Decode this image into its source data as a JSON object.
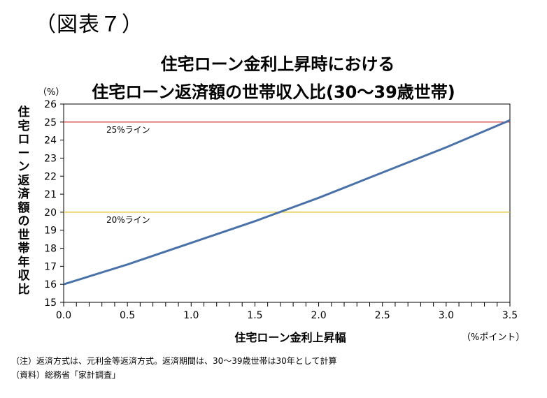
{
  "figure_label": "（図表７）",
  "footnotes": {
    "note": "（注）返済方式は、元利金等返済方式。返済期間は、30～39歳世帯は30年として計算",
    "source": "（資料）総務省「家計調査」"
  },
  "chart_data": {
    "type": "line",
    "title_line1": "住宅ローン金利上昇時における",
    "title_line2": "住宅ローン返済額の世帯収入比(30～39歳世帯)",
    "ylabel": "住宅ローン返済額の世帯年収比",
    "y_unit": "（%）",
    "xlabel": "住宅ローン金利上昇幅",
    "x_unit": "（%ポイント）",
    "xlim": [
      0,
      3.5
    ],
    "ylim": [
      15,
      26
    ],
    "x_ticks": [
      "0.0",
      "0.5",
      "1.0",
      "1.5",
      "2.0",
      "2.5",
      "3.0",
      "3.5"
    ],
    "y_ticks": [
      "15",
      "16",
      "17",
      "18",
      "19",
      "20",
      "21",
      "22",
      "23",
      "24",
      "25",
      "26"
    ],
    "grid": false,
    "series": [
      {
        "color": "#4a72a8",
        "x": [
          0.0,
          0.5,
          1.0,
          1.5,
          2.0,
          2.5,
          3.0,
          3.5
        ],
        "values": [
          16.0,
          17.1,
          18.3,
          19.5,
          20.8,
          22.2,
          23.6,
          25.1
        ]
      }
    ],
    "reference_lines": [
      {
        "y": 25,
        "label": "25%ライン",
        "color": "#cc2222"
      },
      {
        "y": 20,
        "label": "20%ライン",
        "color": "#e0c020"
      }
    ]
  }
}
